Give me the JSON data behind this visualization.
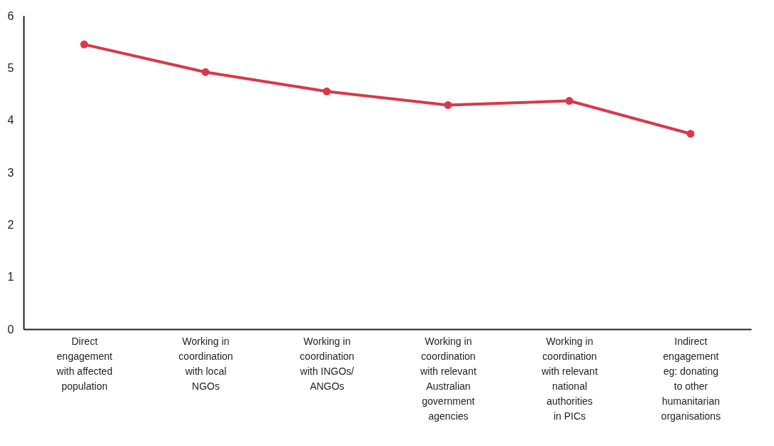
{
  "chart_data": {
    "type": "line",
    "categories": [
      "Direct engagement with affected population",
      "Working in coordination with local NGOs",
      "Working in coordination with INGOs/ ANGOs",
      "Working in coordination with relevant Australian government agencies",
      "Working in coordination with relevant national authorities in PICs",
      "Indirect engagement eg: donating to other humanitarian organisations"
    ],
    "series": [
      {
        "color": "#d7394b",
        "values": [
          5.45,
          4.92,
          4.55,
          4.29,
          4.37,
          3.74
        ]
      }
    ],
    "ylim": [
      0,
      6
    ],
    "yticks": [
      0,
      1,
      2,
      3,
      4,
      5,
      6
    ],
    "grid": false,
    "legend": false,
    "marker": "circle",
    "line_style": "solid"
  }
}
